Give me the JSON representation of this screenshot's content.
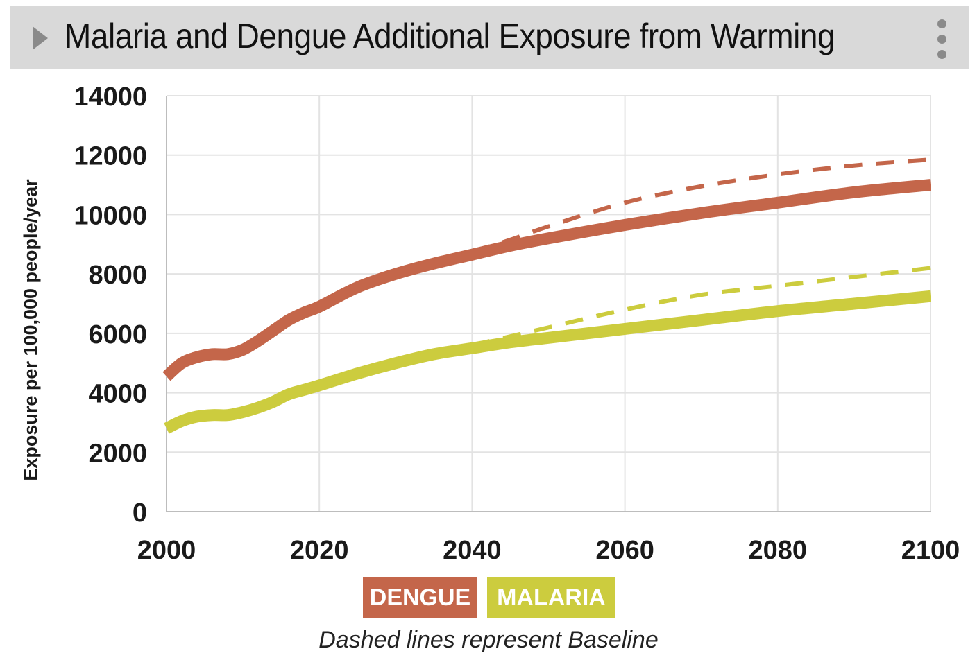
{
  "header": {
    "title": "Malaria and Dengue Additional Exposure from Warming"
  },
  "legend": {
    "items": [
      {
        "label": "DENGUE",
        "color": "#c4664a"
      },
      {
        "label": "MALARIA",
        "color": "#cccc3e"
      }
    ]
  },
  "caption": "Dashed lines represent Baseline",
  "chart_data": {
    "type": "line",
    "title": "Malaria and Dengue Additional Exposure from Warming",
    "xlabel": "",
    "ylabel": "Exposure per 100,000 people/year",
    "xlim": [
      2000,
      2100
    ],
    "ylim": [
      0,
      14000
    ],
    "xticks": [
      2000,
      2020,
      2040,
      2060,
      2080,
      2100
    ],
    "yticks": [
      0,
      2000,
      4000,
      6000,
      8000,
      10000,
      12000,
      14000
    ],
    "grid": true,
    "series": [
      {
        "name": "DENGUE",
        "style": "solid",
        "color": "#c4664a",
        "x": [
          2000,
          2002,
          2004,
          2006,
          2008,
          2010,
          2012,
          2014,
          2016,
          2018,
          2020,
          2025,
          2030,
          2035,
          2040,
          2045,
          2050,
          2060,
          2070,
          2080,
          2090,
          2100
        ],
        "y": [
          4550,
          5000,
          5200,
          5300,
          5300,
          5450,
          5750,
          6100,
          6450,
          6700,
          6900,
          7550,
          8000,
          8350,
          8650,
          8950,
          9200,
          9650,
          10050,
          10400,
          10750,
          11000
        ]
      },
      {
        "name": "DENGUE Baseline",
        "style": "dashed",
        "color": "#c4664a",
        "x": [
          2040,
          2045,
          2050,
          2060,
          2070,
          2080,
          2090,
          2100
        ],
        "y": [
          8750,
          9150,
          9600,
          10400,
          10950,
          11350,
          11650,
          11850
        ]
      },
      {
        "name": "MALARIA",
        "style": "solid",
        "color": "#cccc3e",
        "x": [
          2000,
          2002,
          2004,
          2006,
          2008,
          2010,
          2012,
          2014,
          2016,
          2018,
          2020,
          2025,
          2030,
          2035,
          2040,
          2045,
          2050,
          2060,
          2070,
          2080,
          2090,
          2100
        ],
        "y": [
          2800,
          3050,
          3200,
          3250,
          3250,
          3350,
          3500,
          3700,
          3950,
          4100,
          4250,
          4650,
          5000,
          5300,
          5500,
          5700,
          5850,
          6150,
          6450,
          6750,
          7000,
          7250
        ]
      },
      {
        "name": "MALARIA Baseline",
        "style": "dashed",
        "color": "#cccc3e",
        "x": [
          2040,
          2045,
          2050,
          2060,
          2070,
          2080,
          2090,
          2100
        ],
        "y": [
          5600,
          5900,
          6200,
          6800,
          7300,
          7600,
          7900,
          8200
        ]
      }
    ]
  }
}
